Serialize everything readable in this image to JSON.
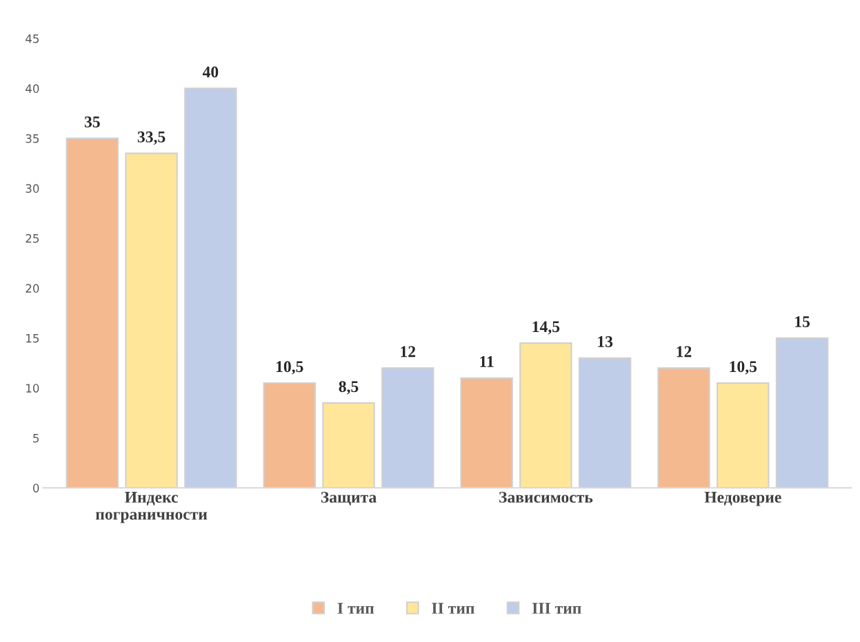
{
  "chart_data": {
    "type": "bar",
    "categories": [
      "Индекс\nпограничности",
      "Защита",
      "Зависимость",
      "Недоверие"
    ],
    "series": [
      {
        "name": "I тип",
        "color": "#f5b990",
        "values": [
          35,
          10.5,
          11,
          12
        ],
        "value_labels": [
          "35",
          "10,5",
          "11",
          "12"
        ]
      },
      {
        "name": "II тип",
        "color": "#ffe699",
        "values": [
          33.5,
          8.5,
          14.5,
          10.5
        ],
        "value_labels": [
          "33,5",
          "8,5",
          "14,5",
          "10,5"
        ]
      },
      {
        "name": "III тип",
        "color": "#c0cde9",
        "values": [
          40,
          12,
          13,
          15
        ],
        "value_labels": [
          "40",
          "12",
          "13",
          "15"
        ]
      }
    ],
    "ylim": [
      0,
      45
    ],
    "yticks": [
      0,
      5,
      10,
      15,
      20,
      25,
      30,
      35,
      40,
      45
    ],
    "grid": false,
    "legend": "bottom"
  }
}
